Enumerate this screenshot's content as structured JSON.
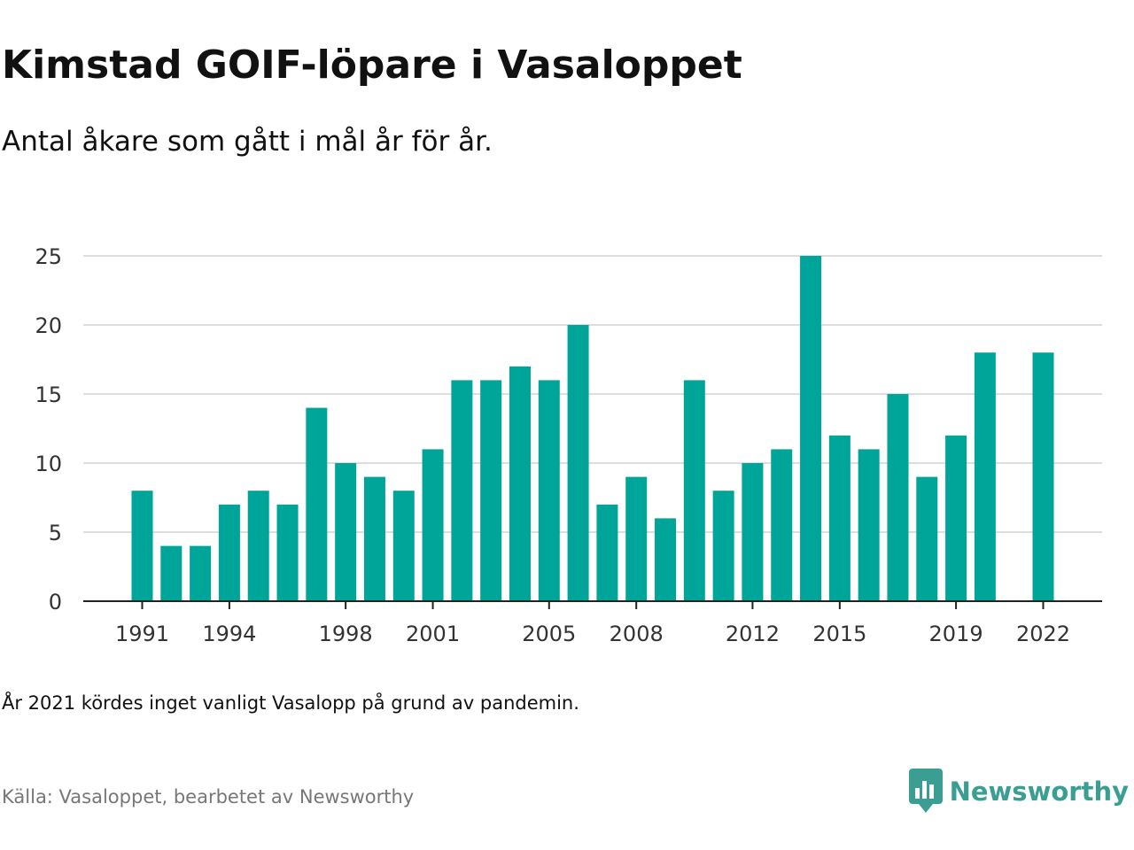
{
  "title": "Kimstad GOIF-löpare i Vasaloppet",
  "subtitle": "Antal åkare som gått i mål år för år.",
  "note": "År 2021 kördes inget vanligt Vasalopp på grund av pandemin.",
  "source": "Källa: Vasaloppet, bearbetet av Newsworthy",
  "brand": {
    "name": "Newsworthy",
    "logo_icon": "newsworthy-logo-icon",
    "color": "#3a9e92"
  },
  "colors": {
    "bar": "#00a599",
    "grid": "#dddddd",
    "axis": "#222222",
    "tick_text": "#333333"
  },
  "chart_data": {
    "type": "bar",
    "title": "Kimstad GOIF-löpare i Vasaloppet",
    "subtitle": "Antal åkare som gått i mål år för år.",
    "xlabel": "",
    "ylabel": "",
    "x": [
      1991,
      1992,
      1993,
      1994,
      1995,
      1996,
      1997,
      1998,
      1999,
      2000,
      2001,
      2002,
      2003,
      2004,
      2005,
      2006,
      2007,
      2008,
      2009,
      2010,
      2011,
      2012,
      2013,
      2014,
      2015,
      2016,
      2017,
      2018,
      2019,
      2020,
      2021,
      2022
    ],
    "values": [
      8,
      4,
      4,
      7,
      8,
      7,
      14,
      10,
      9,
      8,
      11,
      16,
      16,
      17,
      16,
      20,
      7,
      9,
      6,
      16,
      8,
      10,
      11,
      25,
      12,
      11,
      15,
      9,
      12,
      18,
      null,
      18
    ],
    "x_tick_labels": [
      1991,
      1994,
      1998,
      2001,
      2005,
      2008,
      2012,
      2015,
      2019,
      2022
    ],
    "y_ticks": [
      0,
      5,
      10,
      15,
      20,
      25
    ],
    "ylim": [
      0,
      25
    ],
    "grid": true,
    "legend": "none"
  }
}
